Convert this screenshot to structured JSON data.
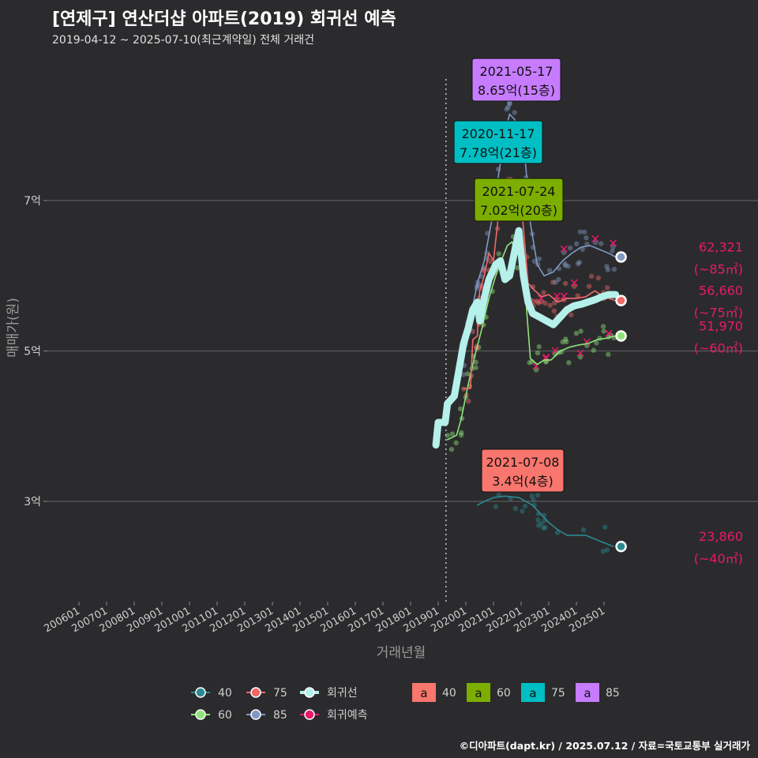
{
  "title": "[연제구] 연산더샵 아파트(2019) 회귀선 예측",
  "subtitle": "2019-04-12 ~ 2025-07-10(최근계약일) 전체 거래건",
  "credit": "©디아파트(dapt.kr) / 2025.07.12 / 자료=국토교통부 실거래가",
  "colors": {
    "background": "#2b2b2d",
    "s40": "#2a8a92",
    "s60": "#8fe37a",
    "s75": "#f06a6a",
    "s85": "#8099c4",
    "regression": "#b5f0ea",
    "forecast": "#e8196a",
    "box40": "#f8766d",
    "box60": "#7cae00",
    "box75": "#00bfc4",
    "box85": "#c77cff"
  },
  "chart_data": {
    "type": "line",
    "xlabel": "거래년월",
    "ylabel": "매매가(원)",
    "x_ticks": [
      "200601",
      "200701",
      "200801",
      "200901",
      "201001",
      "201101",
      "201201",
      "201301",
      "201401",
      "201501",
      "201601",
      "201701",
      "201801",
      "201901",
      "202001",
      "202101",
      "202201",
      "202301",
      "202401",
      "202501"
    ],
    "y_ticks": [
      {
        "value": 3,
        "label": "3억"
      },
      {
        "value": 5,
        "label": "5억"
      },
      {
        "value": 7,
        "label": "7억"
      }
    ],
    "ylim": [
      1.8,
      8.9
    ],
    "grid": true,
    "vline_date": "2019-04-12",
    "series": [
      {
        "name": "40",
        "key": "s40",
        "points": [
          [
            "2020-06",
            2.95
          ],
          [
            "2020-09",
            3.0
          ],
          [
            "2021-01",
            3.05
          ],
          [
            "2021-06",
            3.07
          ],
          [
            "2021-12",
            3.05
          ],
          [
            "2022-03",
            3.0
          ],
          [
            "2022-06",
            2.95
          ],
          [
            "2022-09",
            2.85
          ],
          [
            "2023-01",
            2.72
          ],
          [
            "2023-05",
            2.62
          ],
          [
            "2023-09",
            2.55
          ],
          [
            "2024-01",
            2.55
          ],
          [
            "2024-05",
            2.55
          ],
          [
            "2024-09",
            2.5
          ],
          [
            "2025-01",
            2.45
          ],
          [
            "2025-05",
            2.4
          ]
        ]
      },
      {
        "name": "60",
        "key": "s60",
        "points": [
          [
            "2019-05",
            3.82
          ],
          [
            "2019-09",
            3.88
          ],
          [
            "2019-11",
            4.1
          ],
          [
            "2020-02",
            4.55
          ],
          [
            "2020-05",
            4.95
          ],
          [
            "2020-08",
            5.3
          ],
          [
            "2020-11",
            5.7
          ],
          [
            "2021-02",
            6.0
          ],
          [
            "2021-05",
            6.25
          ],
          [
            "2021-07",
            6.4
          ],
          [
            "2021-09",
            6.45
          ],
          [
            "2021-11",
            6.3
          ],
          [
            "2022-01",
            6.5
          ],
          [
            "2022-03",
            5.7
          ],
          [
            "2022-05",
            4.9
          ],
          [
            "2022-08",
            4.82
          ],
          [
            "2022-11",
            4.88
          ],
          [
            "2023-02",
            4.88
          ],
          [
            "2023-06",
            5.0
          ],
          [
            "2023-10",
            5.05
          ],
          [
            "2024-02",
            5.08
          ],
          [
            "2024-06",
            5.1
          ],
          [
            "2024-10",
            5.15
          ],
          [
            "2025-02",
            5.17
          ],
          [
            "2025-06",
            5.2
          ]
        ]
      },
      {
        "name": "75",
        "key": "s75",
        "points": [
          [
            "2019-12",
            4.5
          ],
          [
            "2020-03",
            4.5
          ],
          [
            "2020-04",
            5.15
          ],
          [
            "2020-06",
            5.2
          ],
          [
            "2020-07",
            5.8
          ],
          [
            "2020-09",
            6.0
          ],
          [
            "2020-11",
            6.3
          ],
          [
            "2021-01",
            6.2
          ],
          [
            "2021-03",
            6.75
          ],
          [
            "2021-05",
            6.9
          ],
          [
            "2021-07",
            7.3
          ],
          [
            "2021-09",
            7.3
          ],
          [
            "2021-10",
            6.9
          ],
          [
            "2022-01",
            7.0
          ],
          [
            "2022-04",
            5.9
          ],
          [
            "2022-07",
            5.8
          ],
          [
            "2022-10",
            5.72
          ],
          [
            "2023-01",
            5.75
          ],
          [
            "2023-05",
            5.65
          ],
          [
            "2023-09",
            5.7
          ],
          [
            "2024-01",
            5.7
          ],
          [
            "2024-05",
            5.72
          ],
          [
            "2024-09",
            5.8
          ],
          [
            "2025-01",
            5.72
          ],
          [
            "2025-06",
            5.67
          ]
        ]
      },
      {
        "name": "85",
        "key": "s85",
        "points": [
          [
            "2019-11",
            4.72
          ],
          [
            "2020-01",
            5.1
          ],
          [
            "2020-04",
            5.6
          ],
          [
            "2020-06",
            5.9
          ],
          [
            "2020-09",
            6.2
          ],
          [
            "2020-12",
            6.7
          ],
          [
            "2021-03",
            7.3
          ],
          [
            "2021-06",
            7.9
          ],
          [
            "2021-08",
            8.15
          ],
          [
            "2021-11",
            8.05
          ],
          [
            "2022-02",
            7.85
          ],
          [
            "2022-05",
            6.7
          ],
          [
            "2022-08",
            6.15
          ],
          [
            "2022-11",
            6.0
          ],
          [
            "2023-03",
            6.05
          ],
          [
            "2023-07",
            6.2
          ],
          [
            "2023-11",
            6.3
          ],
          [
            "2024-03",
            6.38
          ],
          [
            "2024-07",
            6.4
          ],
          [
            "2024-11",
            6.35
          ],
          [
            "2025-03",
            6.3
          ],
          [
            "2025-06",
            6.25
          ]
        ]
      },
      {
        "name": "회귀선",
        "key": "regression",
        "points": [
          [
            "2018-12",
            3.75
          ],
          [
            "2019-01",
            4.05
          ],
          [
            "2019-04",
            4.05
          ],
          [
            "2019-05",
            4.3
          ],
          [
            "2019-08",
            4.4
          ],
          [
            "2019-10",
            4.75
          ],
          [
            "2019-12",
            5.1
          ],
          [
            "2020-02",
            5.3
          ],
          [
            "2020-04",
            5.55
          ],
          [
            "2020-06",
            5.65
          ],
          [
            "2020-07",
            5.4
          ],
          [
            "2020-09",
            5.7
          ],
          [
            "2020-11",
            5.95
          ],
          [
            "2021-02",
            6.15
          ],
          [
            "2021-04",
            6.2
          ],
          [
            "2021-06",
            5.95
          ],
          [
            "2021-08",
            6.0
          ],
          [
            "2021-10",
            6.3
          ],
          [
            "2021-12",
            6.6
          ],
          [
            "2022-02",
            6.0
          ],
          [
            "2022-04",
            5.65
          ],
          [
            "2022-06",
            5.5
          ],
          [
            "2022-09",
            5.45
          ],
          [
            "2022-12",
            5.4
          ],
          [
            "2023-03",
            5.35
          ],
          [
            "2023-06",
            5.45
          ],
          [
            "2023-09",
            5.55
          ],
          [
            "2023-12",
            5.6
          ],
          [
            "2024-03",
            5.62
          ],
          [
            "2024-06",
            5.65
          ],
          [
            "2024-09",
            5.68
          ],
          [
            "2024-12",
            5.72
          ],
          [
            "2025-03",
            5.75
          ],
          [
            "2025-06",
            5.75
          ]
        ]
      }
    ],
    "end_labels": [
      {
        "series": "85",
        "date": "2025-06",
        "y": 6.25,
        "value": "62,321",
        "size": "(~85㎡)"
      },
      {
        "series": "75",
        "date": "2025-06",
        "y": 5.67,
        "value": "56,660",
        "size": "(~75㎡)"
      },
      {
        "series": "60",
        "date": "2025-06",
        "y": 5.2,
        "value": "51,970",
        "size": "(~60㎡)"
      },
      {
        "series": "40",
        "date": "2025-06",
        "y": 2.4,
        "value": "23,860",
        "size": "(~40㎡)"
      }
    ],
    "annotations": [
      {
        "series": "85",
        "box_key": "box85",
        "date": "2021-05-17",
        "text": "8.65억(15층)"
      },
      {
        "series": "75",
        "box_key": "box75",
        "date": "2020-11-17",
        "text": "7.78억(21층)"
      },
      {
        "series": "60",
        "box_key": "box60",
        "date": "2021-07-24",
        "text": "7.02억(20층)"
      },
      {
        "series": "40",
        "box_key": "box40",
        "date": "2021-07-08",
        "text": "3.4억(4층)"
      }
    ],
    "legend": {
      "placement": "bottom",
      "line_items": [
        {
          "label": "40",
          "key": "s40"
        },
        {
          "label": "75",
          "key": "s75"
        },
        {
          "label": "회귀선",
          "key": "regression"
        },
        {
          "label": "60",
          "key": "s60"
        },
        {
          "label": "85",
          "key": "s85"
        },
        {
          "label": "회귀예측",
          "key": "forecast"
        }
      ],
      "box_glyph": "a",
      "box_items": [
        {
          "label": "40",
          "key": "box40"
        },
        {
          "label": "60",
          "key": "box60"
        },
        {
          "label": "75",
          "key": "box75"
        },
        {
          "label": "85",
          "key": "box85"
        }
      ]
    }
  }
}
